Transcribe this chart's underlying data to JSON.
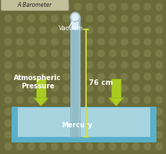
{
  "bg_color": "#6b6b3a",
  "dot_color": "#7c7c48",
  "title": "A Barometer",
  "title_bg": "#c0c09a",
  "title_fg": "#222222",
  "pan_fill": "#7abccc",
  "pan_edge": "#5ab0c8",
  "pan_inner": "#a8d4e0",
  "tube_outer": "#a8c4cc",
  "tube_inner": "#b8d8e4",
  "tube_mercury": "#90bcc8",
  "vacuum_color": "#ddeef8",
  "vacuum_label": "Vacuum",
  "atm_label": "Atmospheric\nPressure",
  "mercury_label": "Mercury",
  "measure_label": "76 cm",
  "arrow_color": "#aacc22",
  "arrow_edge": "#88aa11",
  "meas_color": "#ccdd44",
  "figsize": [
    2.43,
    2.25
  ],
  "dpi": 100
}
